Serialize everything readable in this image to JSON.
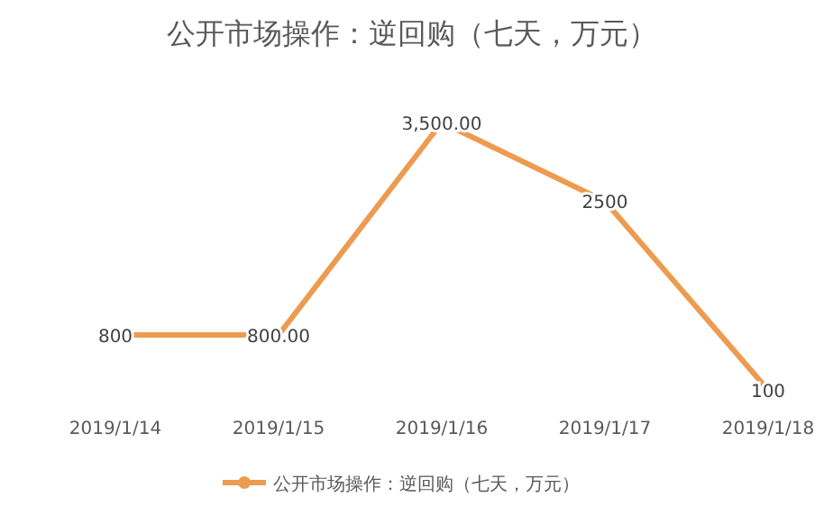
{
  "chart_data": {
    "type": "line",
    "title": "公开市场操作：逆回购（七天，万元）",
    "categories": [
      "2019/1/14",
      "2019/1/15",
      "2019/1/16",
      "2019/1/17",
      "2019/1/18"
    ],
    "series": [
      {
        "name": "公开市场操作：逆回购（七天，万元）",
        "color": "#ed9b4f",
        "values": [
          800,
          800,
          3500,
          2500,
          100
        ],
        "value_labels": [
          "800",
          "800.00",
          "3,500.00",
          "2500",
          "100"
        ]
      }
    ],
    "legend": "bottom",
    "grid": false
  }
}
